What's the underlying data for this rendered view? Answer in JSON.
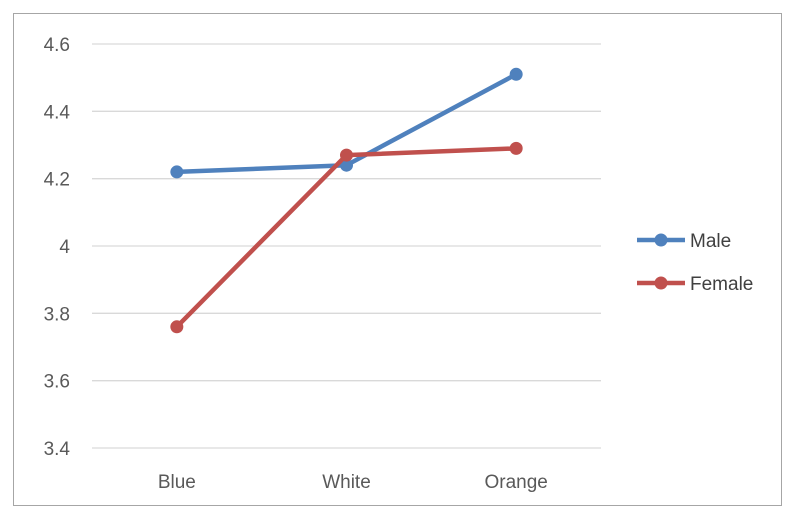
{
  "chart_data": {
    "type": "line",
    "categories": [
      "Blue",
      "White",
      "Orange"
    ],
    "series": [
      {
        "name": "Male",
        "color": "#4f81bd",
        "values": [
          4.22,
          4.24,
          4.51
        ]
      },
      {
        "name": "Female",
        "color": "#c0504d",
        "values": [
          3.76,
          4.27,
          4.29
        ]
      }
    ],
    "ylim": [
      3.4,
      4.6
    ],
    "yticks": [
      3.4,
      3.6,
      3.8,
      4,
      4.2,
      4.4,
      4.6
    ],
    "ytick_labels": [
      "3.4",
      "3.6",
      "3.8",
      "4",
      "4.2",
      "4.4",
      "4.6"
    ],
    "grid": "horizontal",
    "legend_position": "right"
  }
}
